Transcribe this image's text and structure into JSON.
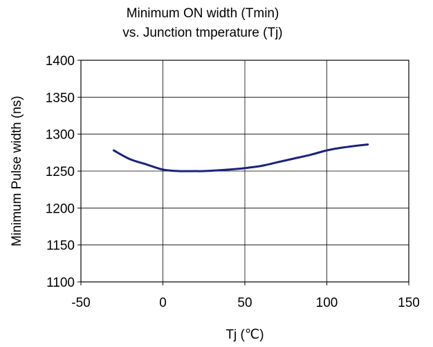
{
  "chart_data": {
    "type": "line",
    "title": [
      "Minimum ON width (Tmin)",
      "vs. Junction tmperature (Tj)"
    ],
    "xlabel": "Tj (℃)",
    "ylabel": "Minimum Pulse width (ns)",
    "xlim": [
      -50,
      150
    ],
    "ylim": [
      1100,
      1400
    ],
    "xticks": [
      -50,
      0,
      50,
      100,
      150
    ],
    "yticks": [
      1100,
      1150,
      1200,
      1250,
      1300,
      1350,
      1400
    ],
    "grid": true,
    "line_color": "#1a237e",
    "series": [
      {
        "x": [
          -30,
          -20,
          -10,
          0,
          10,
          20,
          25,
          40,
          50,
          60,
          70,
          80,
          90,
          100,
          110,
          125
        ],
        "y": [
          1278,
          1266,
          1259,
          1252,
          1250,
          1250,
          1250,
          1252,
          1254,
          1257,
          1262,
          1267,
          1272,
          1278,
          1282,
          1286
        ]
      }
    ]
  }
}
